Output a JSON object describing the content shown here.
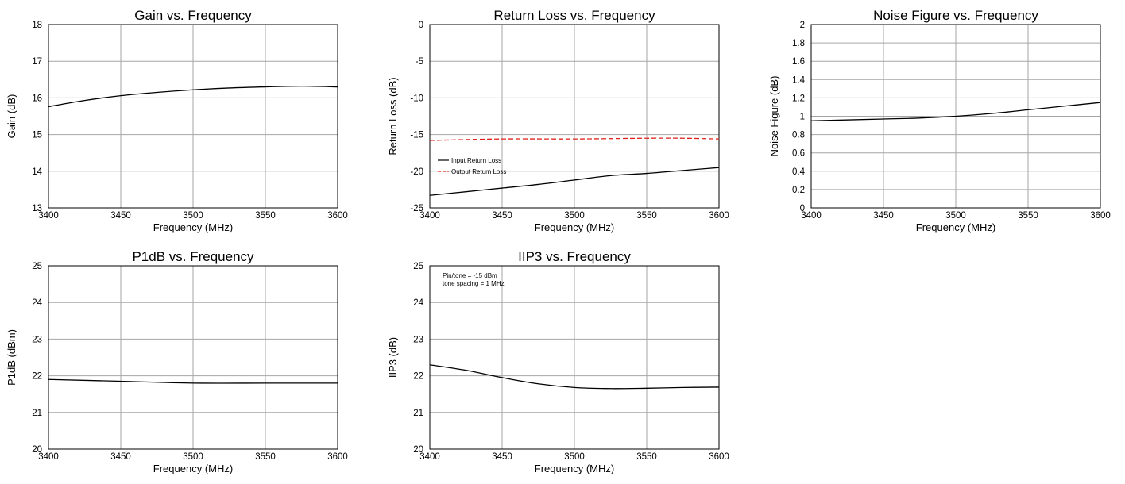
{
  "chart_data": [
    {
      "type": "line",
      "title": "Gain vs. Frequency",
      "xlabel": "Frequency (MHz)",
      "ylabel": "Gain (dB)",
      "xlim": [
        3400,
        3600
      ],
      "ylim": [
        13,
        18
      ],
      "xticks": [
        3400,
        3450,
        3500,
        3550,
        3600
      ],
      "yticks": [
        13,
        14,
        15,
        16,
        17,
        18
      ],
      "ytick_labels": [
        "13",
        "14",
        "15",
        "16",
        "17",
        "18"
      ],
      "grid": true,
      "series": [
        {
          "color": "#000000",
          "dash": "solid",
          "x": [
            3400,
            3425,
            3450,
            3475,
            3500,
            3525,
            3550,
            3575,
            3600
          ],
          "y": [
            15.76,
            15.93,
            16.06,
            16.15,
            16.22,
            16.27,
            16.3,
            16.32,
            16.3
          ]
        }
      ]
    },
    {
      "type": "line",
      "title": "Return Loss vs. Frequency",
      "xlabel": "Frequency (MHz)",
      "ylabel": "Return Loss (dB)",
      "xlim": [
        3400,
        3600
      ],
      "ylim": [
        -25,
        0
      ],
      "xticks": [
        3400,
        3450,
        3500,
        3550,
        3600
      ],
      "yticks": [
        -25,
        -20,
        -15,
        -10,
        -5,
        0
      ],
      "ytick_labels": [
        "-25",
        "-20",
        "-15",
        "-10",
        "-5",
        "0"
      ],
      "grid": true,
      "legend_position": "left",
      "series": [
        {
          "name": "Input Return Loss",
          "color": "#000000",
          "dash": "solid",
          "x": [
            3400,
            3425,
            3450,
            3475,
            3500,
            3525,
            3550,
            3575,
            3600
          ],
          "y": [
            -23.3,
            -22.8,
            -22.3,
            -21.8,
            -21.2,
            -20.6,
            -20.3,
            -19.9,
            -19.5
          ]
        },
        {
          "name": "Output Return Loss",
          "color": "#e0201c",
          "dash": "dashed",
          "x": [
            3400,
            3450,
            3500,
            3550,
            3575,
            3600
          ],
          "y": [
            -15.8,
            -15.6,
            -15.6,
            -15.5,
            -15.5,
            -15.6
          ]
        }
      ]
    },
    {
      "type": "line",
      "title": "Noise Figure vs. Frequency",
      "xlabel": "Frequency (MHz)",
      "ylabel": "Noise Figure (dB)",
      "xlim": [
        3400,
        3600
      ],
      "ylim": [
        0,
        2
      ],
      "xticks": [
        3400,
        3450,
        3500,
        3550,
        3600
      ],
      "yticks": [
        0,
        0.2,
        0.4,
        0.6,
        0.8,
        1,
        1.2,
        1.4,
        1.6,
        1.8,
        2
      ],
      "ytick_labels": [
        "0",
        "0.2",
        "0.4",
        "0.6",
        "0.8",
        "1",
        "1.2",
        "1.4",
        "1.6",
        "1.8",
        "2"
      ],
      "grid": true,
      "series": [
        {
          "color": "#000000",
          "dash": "solid",
          "x": [
            3400,
            3450,
            3475,
            3500,
            3525,
            3550,
            3575,
            3600
          ],
          "y": [
            0.95,
            0.97,
            0.98,
            1.0,
            1.03,
            1.07,
            1.11,
            1.15
          ]
        }
      ]
    },
    {
      "type": "line",
      "title": "P1dB vs. Frequency",
      "xlabel": "Frequency (MHz)",
      "ylabel": "P1dB (dBm)",
      "xlim": [
        3400,
        3600
      ],
      "ylim": [
        20,
        25
      ],
      "xticks": [
        3400,
        3450,
        3500,
        3550,
        3600
      ],
      "yticks": [
        20,
        21,
        22,
        23,
        24,
        25
      ],
      "ytick_labels": [
        "20",
        "21",
        "22",
        "23",
        "24",
        "25"
      ],
      "grid": true,
      "series": [
        {
          "color": "#000000",
          "dash": "solid",
          "x": [
            3400,
            3450,
            3500,
            3550,
            3600
          ],
          "y": [
            21.9,
            21.85,
            21.8,
            21.8,
            21.8
          ]
        }
      ]
    },
    {
      "type": "line",
      "title": "IIP3 vs. Frequency",
      "xlabel": "Frequency (MHz)",
      "ylabel": "IIP3 (dB)",
      "xlim": [
        3400,
        3600
      ],
      "ylim": [
        20,
        25
      ],
      "xticks": [
        3400,
        3450,
        3500,
        3550,
        3600
      ],
      "yticks": [
        20,
        21,
        22,
        23,
        24,
        25
      ],
      "ytick_labels": [
        "20",
        "21",
        "22",
        "23",
        "24",
        "25"
      ],
      "grid": true,
      "annotations": [
        "Pin/tone = -15 dBm",
        "tone spacing = 1 MHz"
      ],
      "series": [
        {
          "color": "#000000",
          "dash": "solid",
          "x": [
            3400,
            3425,
            3450,
            3475,
            3500,
            3525,
            3550,
            3575,
            3600
          ],
          "y": [
            22.3,
            22.15,
            21.95,
            21.78,
            21.68,
            21.65,
            21.66,
            21.68,
            21.69
          ]
        }
      ]
    }
  ]
}
